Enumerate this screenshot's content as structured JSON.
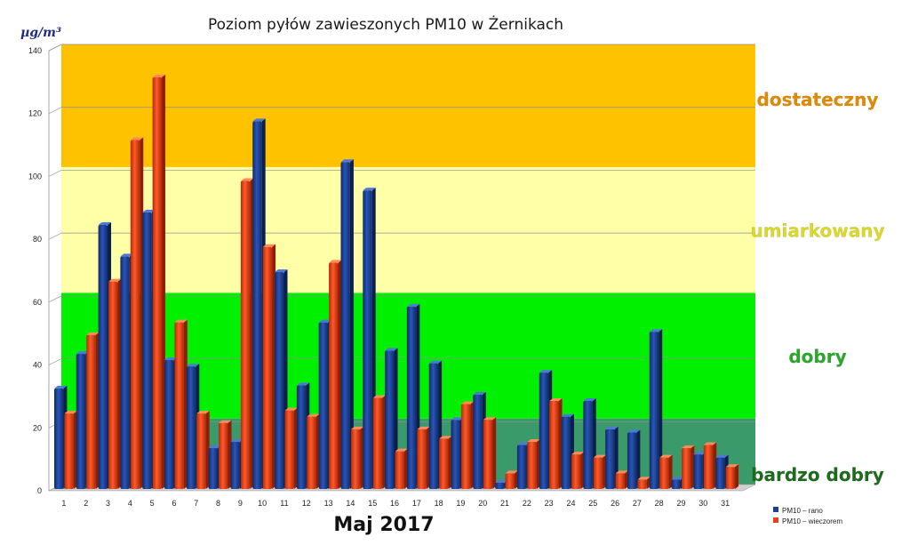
{
  "chart_data": {
    "type": "bar",
    "title": "Poziom pyłów zawieszonych PM10 w Żernikach",
    "ylabel": "µg/m³",
    "xlabel": "Maj 2017",
    "ylim": [
      0,
      140
    ],
    "yticks": [
      0,
      20,
      40,
      60,
      80,
      100,
      120,
      140
    ],
    "categories": [
      "1",
      "2",
      "3",
      "4",
      "5",
      "6",
      "7",
      "8",
      "9",
      "10",
      "11",
      "12",
      "13",
      "14",
      "15",
      "16",
      "17",
      "18",
      "19",
      "20",
      "21",
      "22",
      "23",
      "24",
      "25",
      "26",
      "27",
      "28",
      "29",
      "30",
      "31"
    ],
    "series": [
      {
        "name": "PM10 – rano",
        "color": "#1f3f8f",
        "values": [
          32,
          43,
          84,
          74,
          88,
          41,
          39,
          13,
          15,
          117,
          69,
          33,
          53,
          104,
          95,
          44,
          58,
          40,
          22,
          30,
          2,
          14,
          37,
          23,
          28,
          19,
          18,
          50,
          3,
          11,
          10
        ]
      },
      {
        "name": "PM10 – wieczorem",
        "color": "#e8401c",
        "values": [
          24,
          49,
          66,
          111,
          131,
          53,
          24,
          21,
          98,
          77,
          25,
          23,
          72,
          19,
          29,
          12,
          19,
          16,
          27,
          22,
          5,
          15,
          28,
          11,
          10,
          5,
          3,
          10,
          13,
          14,
          7
        ]
      }
    ],
    "zones": [
      {
        "label": "bardzo dobry",
        "from": 0,
        "to": 21,
        "color": "#3a9a6a",
        "label_color": "#1e6b1e"
      },
      {
        "label": "dobry",
        "from": 21,
        "to": 61,
        "color": "#00f000",
        "label_color": "#2aa82a"
      },
      {
        "label": "umiarkowany",
        "from": 61,
        "to": 101,
        "color": "#ffffa8",
        "label_color": "#d9d92a"
      },
      {
        "label": "dostateczny",
        "from": 101,
        "to": 140,
        "color": "#ffc200",
        "label_color": "#e08a00"
      }
    ],
    "grid": true,
    "legend_position": "bottom-right"
  }
}
